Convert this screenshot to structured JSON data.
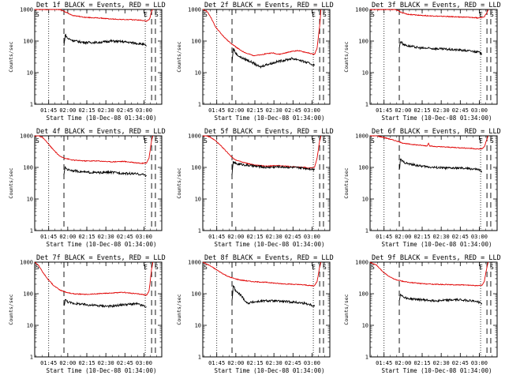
{
  "layout_grid": "3x3",
  "common": {
    "xlabel": "Start Time (10-Dec-08 01:34:00)",
    "ylabel": "Counts/sec",
    "x_tick_labels": [
      "01:45",
      "02:00",
      "02:15",
      "02:30",
      "02:45",
      "03:00"
    ],
    "y_tick_labels": [
      "1",
      "10",
      "100",
      "1000"
    ],
    "marker_s": "S",
    "marker_e": "E",
    "colors": {
      "events": "#000000",
      "lld": "#e00000",
      "frame": "#000000"
    }
  },
  "chart_data": [
    {
      "type": "line",
      "title": "Det 1f BLACK = Events, RED = LLD",
      "xlabel": "Start Time (10-Dec-08 01:34:00)",
      "ylabel": "Counts/sec",
      "x_unit": "minutes since 01:34:00",
      "xlim": [
        0,
        100
      ],
      "ylim": [
        1,
        1000
      ],
      "y_scale": "log",
      "dotted_lines": [
        11,
        87
      ],
      "dashed_lines": [
        23,
        92,
        95
      ],
      "series": [
        {
          "name": "LLD",
          "color": "#e00000",
          "x": [
            0,
            3,
            6,
            10,
            15,
            20,
            25,
            30,
            40,
            50,
            60,
            70,
            80,
            85,
            88,
            90,
            91,
            92,
            93
          ],
          "y": [
            1000,
            1000,
            1000,
            1000,
            1000,
            1000,
            800,
            650,
            560,
            540,
            500,
            480,
            470,
            450,
            430,
            470,
            600,
            900,
            1000
          ]
        },
        {
          "name": "Events",
          "color": "#000000",
          "x": [
            23,
            24,
            26,
            30,
            35,
            40,
            50,
            60,
            70,
            80,
            85,
            88
          ],
          "y": [
            70,
            160,
            120,
            105,
            95,
            90,
            90,
            100,
            95,
            85,
            80,
            70
          ]
        }
      ]
    },
    {
      "type": "line",
      "title": "Det 2f BLACK = Events, RED = LLD",
      "xlabel": "Start Time (10-Dec-08 01:34:00)",
      "ylabel": "Counts/sec",
      "x_unit": "minutes since 01:34:00",
      "xlim": [
        0,
        100
      ],
      "ylim": [
        1,
        1000
      ],
      "y_scale": "log",
      "dotted_lines": [
        11,
        87
      ],
      "dashed_lines": [
        23,
        92,
        95
      ],
      "series": [
        {
          "name": "LLD",
          "color": "#e00000",
          "x": [
            0,
            3,
            6,
            10,
            15,
            20,
            25,
            30,
            35,
            40,
            45,
            50,
            55,
            60,
            65,
            70,
            75,
            80,
            85,
            88,
            90,
            92,
            93
          ],
          "y": [
            1000,
            900,
            600,
            280,
            160,
            100,
            70,
            50,
            40,
            35,
            36,
            40,
            42,
            38,
            42,
            47,
            50,
            45,
            40,
            38,
            60,
            300,
            1000
          ]
        },
        {
          "name": "Events",
          "color": "#000000",
          "x": [
            23,
            24,
            26,
            30,
            35,
            40,
            45,
            50,
            55,
            60,
            65,
            70,
            75,
            80,
            85,
            88
          ],
          "y": [
            20,
            60,
            40,
            30,
            25,
            20,
            15,
            18,
            20,
            23,
            25,
            28,
            26,
            22,
            19,
            17
          ]
        }
      ]
    },
    {
      "type": "line",
      "title": "Det 3f BLACK = Events, RED = LLD",
      "xlabel": "Start Time (10-Dec-08 01:34:00)",
      "ylabel": "Counts/sec",
      "x_unit": "minutes since 01:34:00",
      "xlim": [
        0,
        100
      ],
      "ylim": [
        1,
        1000
      ],
      "y_scale": "log",
      "dotted_lines": [
        11,
        87
      ],
      "dashed_lines": [
        23,
        92,
        95
      ],
      "series": [
        {
          "name": "LLD",
          "color": "#e00000",
          "x": [
            0,
            5,
            10,
            15,
            20,
            25,
            30,
            40,
            50,
            60,
            70,
            80,
            85,
            88,
            90,
            92,
            93
          ],
          "y": [
            1000,
            1000,
            1000,
            1000,
            1000,
            800,
            700,
            650,
            620,
            600,
            580,
            560,
            540,
            560,
            600,
            800,
            1000
          ]
        },
        {
          "name": "Events",
          "color": "#000000",
          "x": [
            23,
            24,
            26,
            30,
            40,
            50,
            60,
            70,
            80,
            85,
            88
          ],
          "y": [
            60,
            100,
            80,
            70,
            60,
            58,
            55,
            52,
            48,
            45,
            40
          ]
        }
      ]
    },
    {
      "type": "line",
      "title": "Det 4f BLACK = Events, RED = LLD",
      "xlabel": "Start Time (10-Dec-08 01:34:00)",
      "ylabel": "Counts/sec",
      "x_unit": "minutes since 01:34:00",
      "xlim": [
        0,
        100
      ],
      "ylim": [
        1,
        1000
      ],
      "y_scale": "log",
      "dotted_lines": [
        11,
        87
      ],
      "dashed_lines": [
        23,
        92,
        95
      ],
      "series": [
        {
          "name": "LLD",
          "color": "#e00000",
          "x": [
            0,
            3,
            6,
            10,
            15,
            20,
            25,
            30,
            40,
            50,
            60,
            70,
            80,
            85,
            88,
            90,
            92,
            93
          ],
          "y": [
            1000,
            1000,
            900,
            600,
            350,
            220,
            190,
            170,
            160,
            160,
            150,
            155,
            140,
            135,
            140,
            200,
            700,
            1000
          ]
        },
        {
          "name": "Events",
          "color": "#000000",
          "x": [
            23,
            24,
            26,
            30,
            40,
            50,
            60,
            70,
            80,
            85,
            88
          ],
          "y": [
            60,
            100,
            85,
            80,
            70,
            68,
            70,
            65,
            62,
            60,
            55
          ]
        }
      ]
    },
    {
      "type": "line",
      "title": "Det 5f BLACK = Events, RED = LLD",
      "xlabel": "Start Time (10-Dec-08 01:34:00)",
      "ylabel": "Counts/sec",
      "x_unit": "minutes since 01:34:00",
      "xlim": [
        0,
        100
      ],
      "ylim": [
        1,
        1000
      ],
      "y_scale": "log",
      "dotted_lines": [
        11,
        87
      ],
      "dashed_lines": [
        23,
        92,
        95
      ],
      "series": [
        {
          "name": "LLD",
          "color": "#e00000",
          "x": [
            0,
            3,
            6,
            10,
            15,
            20,
            22,
            25,
            30,
            40,
            50,
            60,
            70,
            80,
            85,
            88,
            90,
            92,
            93
          ],
          "y": [
            1000,
            1000,
            900,
            700,
            450,
            280,
            230,
            180,
            150,
            120,
            110,
            115,
            105,
            100,
            95,
            100,
            200,
            700,
            1000
          ]
        },
        {
          "name": "Events",
          "color": "#000000",
          "x": [
            23,
            24,
            26,
            30,
            40,
            50,
            60,
            70,
            80,
            85,
            88
          ],
          "y": [
            60,
            150,
            130,
            125,
            110,
            100,
            105,
            100,
            95,
            90,
            85
          ]
        }
      ]
    },
    {
      "type": "line",
      "title": "Det 6f BLACK = Events, RED = LLD",
      "xlabel": "Start Time (10-Dec-08 01:34:00)",
      "ylabel": "Counts/sec",
      "x_unit": "minutes since 01:34:00",
      "xlim": [
        0,
        100
      ],
      "ylim": [
        1,
        1000
      ],
      "y_scale": "log",
      "dotted_lines": [
        11,
        87
      ],
      "dashed_lines": [
        23,
        92,
        95
      ],
      "series": [
        {
          "name": "LLD",
          "color": "#e00000",
          "x": [
            0,
            5,
            10,
            15,
            20,
            25,
            30,
            40,
            45,
            46,
            47,
            50,
            60,
            70,
            80,
            85,
            88,
            90,
            92,
            93
          ],
          "y": [
            1000,
            1000,
            900,
            800,
            700,
            600,
            550,
            500,
            480,
            600,
            480,
            460,
            440,
            420,
            400,
            380,
            390,
            450,
            800,
            1000
          ]
        },
        {
          "name": "Events",
          "color": "#000000",
          "x": [
            23,
            24,
            26,
            30,
            40,
            50,
            60,
            70,
            80,
            85,
            88
          ],
          "y": [
            80,
            180,
            150,
            130,
            110,
            100,
            95,
            95,
            90,
            85,
            75
          ]
        }
      ]
    },
    {
      "type": "line",
      "title": "Det 7f BLACK = Events, RED = LLD",
      "xlabel": "Start Time (10-Dec-08 01:34:00)",
      "ylabel": "Counts/sec",
      "x_unit": "minutes since 01:34:00",
      "xlim": [
        0,
        100
      ],
      "ylim": [
        1,
        1000
      ],
      "y_scale": "log",
      "dotted_lines": [
        11,
        87
      ],
      "dashed_lines": [
        23,
        92,
        95
      ],
      "series": [
        {
          "name": "LLD",
          "color": "#e00000",
          "x": [
            0,
            3,
            6,
            10,
            15,
            20,
            25,
            30,
            40,
            50,
            60,
            70,
            80,
            85,
            88,
            90,
            92,
            93
          ],
          "y": [
            1000,
            800,
            500,
            300,
            180,
            130,
            110,
            100,
            95,
            100,
            105,
            110,
            100,
            95,
            90,
            120,
            600,
            1000
          ]
        },
        {
          "name": "Events",
          "color": "#000000",
          "x": [
            23,
            24,
            26,
            30,
            40,
            50,
            60,
            70,
            80,
            85,
            88
          ],
          "y": [
            40,
            65,
            55,
            50,
            45,
            42,
            40,
            45,
            48,
            42,
            38
          ]
        }
      ]
    },
    {
      "type": "line",
      "title": "Det 8f BLACK = Events, RED = LLD",
      "xlabel": "Start Time (10-Dec-08 01:34:00)",
      "ylabel": "Counts/sec",
      "x_unit": "minutes since 01:34:00",
      "xlim": [
        0,
        100
      ],
      "ylim": [
        1,
        1000
      ],
      "y_scale": "log",
      "dotted_lines": [
        11,
        87
      ],
      "dashed_lines": [
        23,
        92,
        95
      ],
      "series": [
        {
          "name": "LLD",
          "color": "#e00000",
          "x": [
            0,
            5,
            10,
            15,
            20,
            25,
            30,
            40,
            50,
            60,
            70,
            80,
            85,
            88,
            90,
            92,
            93
          ],
          "y": [
            1000,
            800,
            600,
            450,
            350,
            300,
            270,
            240,
            230,
            210,
            200,
            190,
            180,
            180,
            250,
            700,
            1000
          ]
        },
        {
          "name": "Events",
          "color": "#000000",
          "x": [
            23,
            24,
            26,
            30,
            32,
            35,
            40,
            50,
            60,
            70,
            80,
            85,
            88
          ],
          "y": [
            60,
            180,
            120,
            90,
            70,
            50,
            55,
            60,
            58,
            55,
            50,
            45,
            40
          ]
        }
      ]
    },
    {
      "type": "line",
      "title": "Det 9f BLACK = Events, RED = LLD",
      "xlabel": "Start Time (10-Dec-08 01:34:00)",
      "ylabel": "Counts/sec",
      "x_unit": "minutes since 01:34:00",
      "xlim": [
        0,
        100
      ],
      "ylim": [
        1,
        1000
      ],
      "y_scale": "log",
      "dotted_lines": [
        11,
        87
      ],
      "dashed_lines": [
        23,
        92,
        95
      ],
      "series": [
        {
          "name": "LLD",
          "color": "#e00000",
          "x": [
            0,
            5,
            10,
            15,
            20,
            25,
            30,
            40,
            50,
            60,
            70,
            80,
            85,
            88,
            90,
            92,
            93
          ],
          "y": [
            1000,
            800,
            500,
            350,
            280,
            250,
            230,
            210,
            200,
            195,
            190,
            185,
            180,
            185,
            250,
            700,
            1000
          ]
        },
        {
          "name": "Events",
          "color": "#000000",
          "x": [
            23,
            24,
            26,
            30,
            40,
            50,
            60,
            70,
            80,
            85,
            88
          ],
          "y": [
            60,
            100,
            80,
            70,
            65,
            60,
            62,
            65,
            60,
            55,
            50
          ]
        }
      ]
    }
  ]
}
